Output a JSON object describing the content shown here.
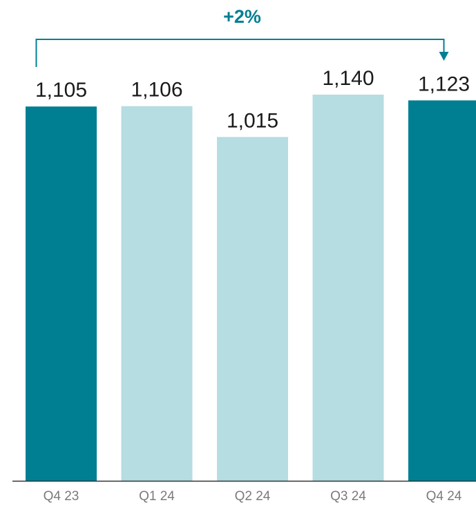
{
  "chart_data": {
    "type": "bar",
    "categories": [
      "Q4 23",
      "Q1 24",
      "Q2 24",
      "Q3 24",
      "Q4 24"
    ],
    "values": [
      1105,
      1106,
      1015,
      1140,
      1123
    ],
    "value_labels": [
      "1,105",
      "1,106",
      "1,015",
      "1,140",
      "1,123"
    ],
    "title": "",
    "xlabel": "",
    "ylabel": "",
    "ylim": [
      0,
      1140
    ],
    "grid": false,
    "legend": "none",
    "highlighted_categories": [
      "Q4 23",
      "Q4 24"
    ],
    "colors": {
      "highlight": "#007f92",
      "normal": "#b5dde2",
      "text": "#1a1a1a",
      "tick_text": "#7a7a7a",
      "annotation": "#007f92",
      "axis": "#333333"
    },
    "annotation": {
      "text": "+2%",
      "from": "Q4 23",
      "to": "Q4 24"
    }
  }
}
